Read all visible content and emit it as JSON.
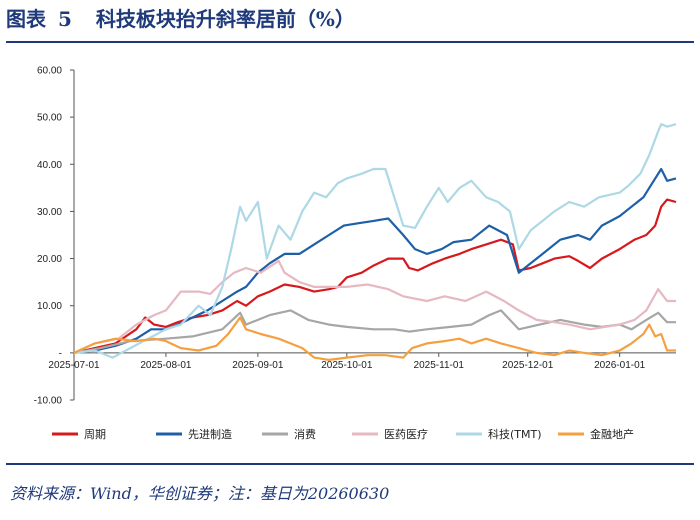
{
  "figure": {
    "label": "图表",
    "number": "5",
    "title": "科技板块抬升斜率居前（%）",
    "source": "资料来源：Wind，华创证券；注：基日为20260630"
  },
  "chart_data": {
    "type": "line",
    "ylim": [
      -10,
      60
    ],
    "yticks": [
      "60.00",
      "50.00",
      "40.00",
      "30.00",
      "20.00",
      "10.00",
      "-",
      "-10.00"
    ],
    "ytick_values": [
      60,
      50,
      40,
      30,
      20,
      10,
      0,
      -10
    ],
    "xticks": [
      "2025-07-01",
      "2025-08-01",
      "2025-09-01",
      "2025-10-01",
      "2025-11-01",
      "2025-12-01",
      "2026-01-01"
    ],
    "xlim": [
      "2025-07-01",
      "2026-01-20"
    ],
    "grid": false,
    "legend_position": "bottom",
    "series": [
      {
        "name": "周期",
        "color": "#d7191c",
        "points": [
          [
            "2025-07-01",
            0
          ],
          [
            "2025-07-08",
            1
          ],
          [
            "2025-07-15",
            2
          ],
          [
            "2025-07-22",
            5
          ],
          [
            "2025-07-25",
            7.5
          ],
          [
            "2025-07-28",
            6
          ],
          [
            "2025-08-01",
            5.5
          ],
          [
            "2025-08-05",
            6.5
          ],
          [
            "2025-08-10",
            7.5
          ],
          [
            "2025-08-15",
            8
          ],
          [
            "2025-08-20",
            9
          ],
          [
            "2025-08-25",
            11
          ],
          [
            "2025-08-28",
            10
          ],
          [
            "2025-09-01",
            12
          ],
          [
            "2025-09-05",
            13
          ],
          [
            "2025-09-10",
            14.5
          ],
          [
            "2025-09-15",
            14
          ],
          [
            "2025-09-20",
            13
          ],
          [
            "2025-09-25",
            13.5
          ],
          [
            "2025-09-28",
            14
          ],
          [
            "2025-10-01",
            16
          ],
          [
            "2025-10-06",
            17
          ],
          [
            "2025-10-10",
            18.5
          ],
          [
            "2025-10-15",
            20
          ],
          [
            "2025-10-20",
            20
          ],
          [
            "2025-10-22",
            18
          ],
          [
            "2025-10-25",
            17.5
          ],
          [
            "2025-10-30",
            19
          ],
          [
            "2025-11-03",
            20
          ],
          [
            "2025-11-08",
            21
          ],
          [
            "2025-11-12",
            22
          ],
          [
            "2025-11-17",
            23
          ],
          [
            "2025-11-22",
            24
          ],
          [
            "2025-11-26",
            23
          ],
          [
            "2025-11-28",
            17.5
          ],
          [
            "2025-12-02",
            18
          ],
          [
            "2025-12-06",
            19
          ],
          [
            "2025-12-10",
            20
          ],
          [
            "2025-12-15",
            20.5
          ],
          [
            "2025-12-18",
            19.5
          ],
          [
            "2025-12-22",
            18
          ],
          [
            "2025-12-26",
            20
          ],
          [
            "2026-01-01",
            22
          ],
          [
            "2026-01-06",
            24
          ],
          [
            "2026-01-10",
            25
          ],
          [
            "2026-01-13",
            27
          ],
          [
            "2026-01-15",
            31
          ],
          [
            "2026-01-17",
            32.5
          ],
          [
            "2026-01-20",
            32
          ]
        ]
      },
      {
        "name": "先进制造",
        "color": "#1f5fa8",
        "points": [
          [
            "2025-07-01",
            0
          ],
          [
            "2025-07-08",
            0.5
          ],
          [
            "2025-07-15",
            1.5
          ],
          [
            "2025-07-22",
            3
          ],
          [
            "2025-07-27",
            5
          ],
          [
            "2025-08-01",
            5
          ],
          [
            "2025-08-05",
            6
          ],
          [
            "2025-08-10",
            7.5
          ],
          [
            "2025-08-15",
            9
          ],
          [
            "2025-08-20",
            11
          ],
          [
            "2025-08-25",
            13
          ],
          [
            "2025-08-28",
            14
          ],
          [
            "2025-09-01",
            17
          ],
          [
            "2025-09-05",
            19
          ],
          [
            "2025-09-10",
            21
          ],
          [
            "2025-09-15",
            21
          ],
          [
            "2025-09-20",
            23
          ],
          [
            "2025-09-25",
            25
          ],
          [
            "2025-09-30",
            27
          ],
          [
            "2025-10-05",
            27.5
          ],
          [
            "2025-10-10",
            28
          ],
          [
            "2025-10-15",
            28.5
          ],
          [
            "2025-10-20",
            25
          ],
          [
            "2025-10-24",
            22
          ],
          [
            "2025-10-28",
            21
          ],
          [
            "2025-11-02",
            22
          ],
          [
            "2025-11-06",
            23.5
          ],
          [
            "2025-11-12",
            24
          ],
          [
            "2025-11-18",
            27
          ],
          [
            "2025-11-24",
            25
          ],
          [
            "2025-11-28",
            17
          ],
          [
            "2025-12-02",
            19
          ],
          [
            "2025-12-06",
            21
          ],
          [
            "2025-12-12",
            24
          ],
          [
            "2025-12-18",
            25
          ],
          [
            "2025-12-22",
            24
          ],
          [
            "2025-12-26",
            27
          ],
          [
            "2026-01-01",
            29
          ],
          [
            "2026-01-05",
            31
          ],
          [
            "2026-01-09",
            33
          ],
          [
            "2026-01-12",
            36
          ],
          [
            "2026-01-15",
            39
          ],
          [
            "2026-01-17",
            36.5
          ],
          [
            "2026-01-20",
            37
          ]
        ]
      },
      {
        "name": "消费",
        "color": "#a6a6a6",
        "points": [
          [
            "2025-07-01",
            0
          ],
          [
            "2025-07-10",
            1
          ],
          [
            "2025-07-20",
            2.5
          ],
          [
            "2025-08-01",
            3
          ],
          [
            "2025-08-10",
            3.5
          ],
          [
            "2025-08-20",
            5
          ],
          [
            "2025-08-26",
            8.5
          ],
          [
            "2025-08-28",
            6
          ],
          [
            "2025-09-05",
            8
          ],
          [
            "2025-09-12",
            9
          ],
          [
            "2025-09-18",
            7
          ],
          [
            "2025-09-25",
            6
          ],
          [
            "2025-10-01",
            5.5
          ],
          [
            "2025-10-10",
            5
          ],
          [
            "2025-10-17",
            5
          ],
          [
            "2025-10-22",
            4.5
          ],
          [
            "2025-10-28",
            5
          ],
          [
            "2025-11-05",
            5.5
          ],
          [
            "2025-11-12",
            6
          ],
          [
            "2025-11-18",
            8
          ],
          [
            "2025-11-22",
            9
          ],
          [
            "2025-11-28",
            5
          ],
          [
            "2025-12-05",
            6
          ],
          [
            "2025-12-12",
            7
          ],
          [
            "2025-12-20",
            6
          ],
          [
            "2025-12-26",
            5.5
          ],
          [
            "2026-01-01",
            6
          ],
          [
            "2026-01-05",
            5
          ],
          [
            "2026-01-10",
            7
          ],
          [
            "2026-01-14",
            8.5
          ],
          [
            "2026-01-17",
            6.5
          ],
          [
            "2026-01-20",
            6.5
          ]
        ]
      },
      {
        "name": "医药医疗",
        "color": "#e6b8c2",
        "points": [
          [
            "2025-07-01",
            0
          ],
          [
            "2025-07-08",
            2
          ],
          [
            "2025-07-16",
            3
          ],
          [
            "2025-07-22",
            6
          ],
          [
            "2025-07-28",
            8
          ],
          [
            "2025-08-01",
            9
          ],
          [
            "2025-08-06",
            13
          ],
          [
            "2025-08-12",
            13
          ],
          [
            "2025-08-16",
            12.5
          ],
          [
            "2025-08-20",
            15
          ],
          [
            "2025-08-24",
            17
          ],
          [
            "2025-08-28",
            18
          ],
          [
            "2025-09-02",
            17
          ],
          [
            "2025-09-08",
            19.5
          ],
          [
            "2025-09-10",
            17
          ],
          [
            "2025-09-15",
            15
          ],
          [
            "2025-09-20",
            14
          ],
          [
            "2025-09-25",
            14
          ],
          [
            "2025-10-01",
            14
          ],
          [
            "2025-10-08",
            14.5
          ],
          [
            "2025-10-15",
            13.5
          ],
          [
            "2025-10-20",
            12
          ],
          [
            "2025-10-28",
            11
          ],
          [
            "2025-11-03",
            12
          ],
          [
            "2025-11-10",
            11
          ],
          [
            "2025-11-17",
            13
          ],
          [
            "2025-11-23",
            11
          ],
          [
            "2025-11-28",
            9
          ],
          [
            "2025-12-04",
            7
          ],
          [
            "2025-12-10",
            6.5
          ],
          [
            "2025-12-15",
            6
          ],
          [
            "2025-12-22",
            5
          ],
          [
            "2026-01-01",
            6
          ],
          [
            "2026-01-06",
            7
          ],
          [
            "2026-01-10",
            9
          ],
          [
            "2026-01-14",
            13.5
          ],
          [
            "2026-01-17",
            11
          ],
          [
            "2026-01-20",
            11
          ]
        ]
      },
      {
        "name": "科技(TMT)",
        "color": "#add8e6",
        "points": [
          [
            "2025-07-01",
            0
          ],
          [
            "2025-07-08",
            0.5
          ],
          [
            "2025-07-14",
            -1
          ],
          [
            "2025-07-20",
            1
          ],
          [
            "2025-07-26",
            3
          ],
          [
            "2025-08-01",
            5
          ],
          [
            "2025-08-06",
            6
          ],
          [
            "2025-08-12",
            10
          ],
          [
            "2025-08-16",
            8
          ],
          [
            "2025-08-20",
            14
          ],
          [
            "2025-08-23",
            22
          ],
          [
            "2025-08-26",
            31
          ],
          [
            "2025-08-28",
            28
          ],
          [
            "2025-09-01",
            32
          ],
          [
            "2025-09-04",
            20
          ],
          [
            "2025-09-08",
            27
          ],
          [
            "2025-09-12",
            24
          ],
          [
            "2025-09-16",
            30
          ],
          [
            "2025-09-20",
            34
          ],
          [
            "2025-09-24",
            33
          ],
          [
            "2025-09-28",
            36
          ],
          [
            "2025-10-01",
            37
          ],
          [
            "2025-10-06",
            38
          ],
          [
            "2025-10-10",
            39
          ],
          [
            "2025-10-14",
            39
          ],
          [
            "2025-10-17",
            33
          ],
          [
            "2025-10-20",
            27
          ],
          [
            "2025-10-24",
            26.5
          ],
          [
            "2025-10-28",
            31
          ],
          [
            "2025-11-01",
            35
          ],
          [
            "2025-11-04",
            32
          ],
          [
            "2025-11-08",
            35
          ],
          [
            "2025-11-12",
            36.5
          ],
          [
            "2025-11-17",
            33
          ],
          [
            "2025-11-21",
            32
          ],
          [
            "2025-11-25",
            30
          ],
          [
            "2025-11-28",
            22
          ],
          [
            "2025-12-02",
            26
          ],
          [
            "2025-12-06",
            28
          ],
          [
            "2025-12-10",
            30
          ],
          [
            "2025-12-15",
            32
          ],
          [
            "2025-12-20",
            31
          ],
          [
            "2025-12-25",
            33
          ],
          [
            "2026-01-01",
            34
          ],
          [
            "2026-01-04",
            35.5
          ],
          [
            "2026-01-08",
            38
          ],
          [
            "2026-01-11",
            42
          ],
          [
            "2026-01-14",
            47
          ],
          [
            "2026-01-15",
            48.5
          ],
          [
            "2026-01-17",
            48
          ],
          [
            "2026-01-20",
            48.5
          ]
        ]
      },
      {
        "name": "金融地产",
        "color": "#f4a040",
        "points": [
          [
            "2025-07-01",
            0
          ],
          [
            "2025-07-08",
            2
          ],
          [
            "2025-07-15",
            3
          ],
          [
            "2025-07-22",
            2.5
          ],
          [
            "2025-07-28",
            3
          ],
          [
            "2025-08-01",
            2.5
          ],
          [
            "2025-08-06",
            1
          ],
          [
            "2025-08-12",
            0.5
          ],
          [
            "2025-08-18",
            1.5
          ],
          [
            "2025-08-22",
            4
          ],
          [
            "2025-08-26",
            7.5
          ],
          [
            "2025-08-28",
            5
          ],
          [
            "2025-09-02",
            4
          ],
          [
            "2025-09-08",
            3
          ],
          [
            "2025-09-12",
            2
          ],
          [
            "2025-09-16",
            1
          ],
          [
            "2025-09-20",
            -1
          ],
          [
            "2025-09-25",
            -1.5
          ],
          [
            "2025-10-01",
            -1
          ],
          [
            "2025-10-08",
            -0.5
          ],
          [
            "2025-10-14",
            -0.5
          ],
          [
            "2025-10-20",
            -1
          ],
          [
            "2025-10-23",
            1
          ],
          [
            "2025-10-28",
            2
          ],
          [
            "2025-11-03",
            2.5
          ],
          [
            "2025-11-08",
            3
          ],
          [
            "2025-11-12",
            2
          ],
          [
            "2025-11-17",
            3
          ],
          [
            "2025-11-22",
            2
          ],
          [
            "2025-11-28",
            1
          ],
          [
            "2025-12-04",
            0
          ],
          [
            "2025-12-10",
            -0.5
          ],
          [
            "2025-12-15",
            0.5
          ],
          [
            "2025-12-20",
            0
          ],
          [
            "2025-12-26",
            -0.5
          ],
          [
            "2026-01-01",
            0.5
          ],
          [
            "2026-01-05",
            2
          ],
          [
            "2026-01-09",
            4
          ],
          [
            "2026-01-11",
            6
          ],
          [
            "2026-01-13",
            3.5
          ],
          [
            "2026-01-15",
            4
          ],
          [
            "2026-01-17",
            0.5
          ],
          [
            "2026-01-20",
            0.5
          ]
        ]
      }
    ]
  }
}
